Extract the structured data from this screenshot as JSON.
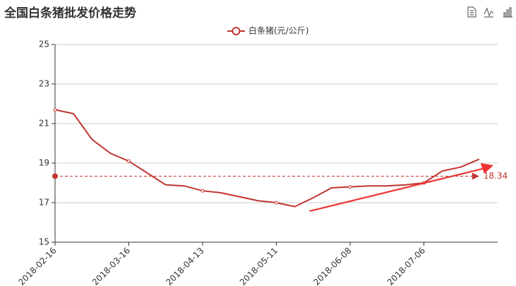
{
  "chart_data": {
    "type": "line",
    "title": "全国白条猪批发价格走势",
    "categories": [
      "2018-02-16",
      null,
      null,
      null,
      "2018-03-16",
      null,
      null,
      null,
      "2018-04-13",
      null,
      null,
      null,
      "2018-05-11",
      null,
      null,
      null,
      "2018-06-08",
      null,
      null,
      null,
      "2018-07-06",
      null,
      null,
      null,
      null
    ],
    "series": [
      {
        "name": "白条猪(元/公斤)",
        "color": "#c23531",
        "values": [
          21.7,
          21.5,
          20.2,
          19.5,
          19.1,
          18.5,
          17.9,
          17.85,
          17.6,
          17.5,
          17.3,
          17.1,
          17.0,
          16.8,
          17.25,
          17.75,
          17.8,
          17.85,
          17.85,
          17.9,
          18.0,
          18.6,
          18.8,
          19.2,
          null
        ]
      }
    ],
    "mark_line": {
      "value": 18.34
    },
    "ylim": [
      15,
      25
    ],
    "yticks": [
      15,
      17,
      19,
      21,
      23,
      25
    ],
    "grid": true
  }
}
